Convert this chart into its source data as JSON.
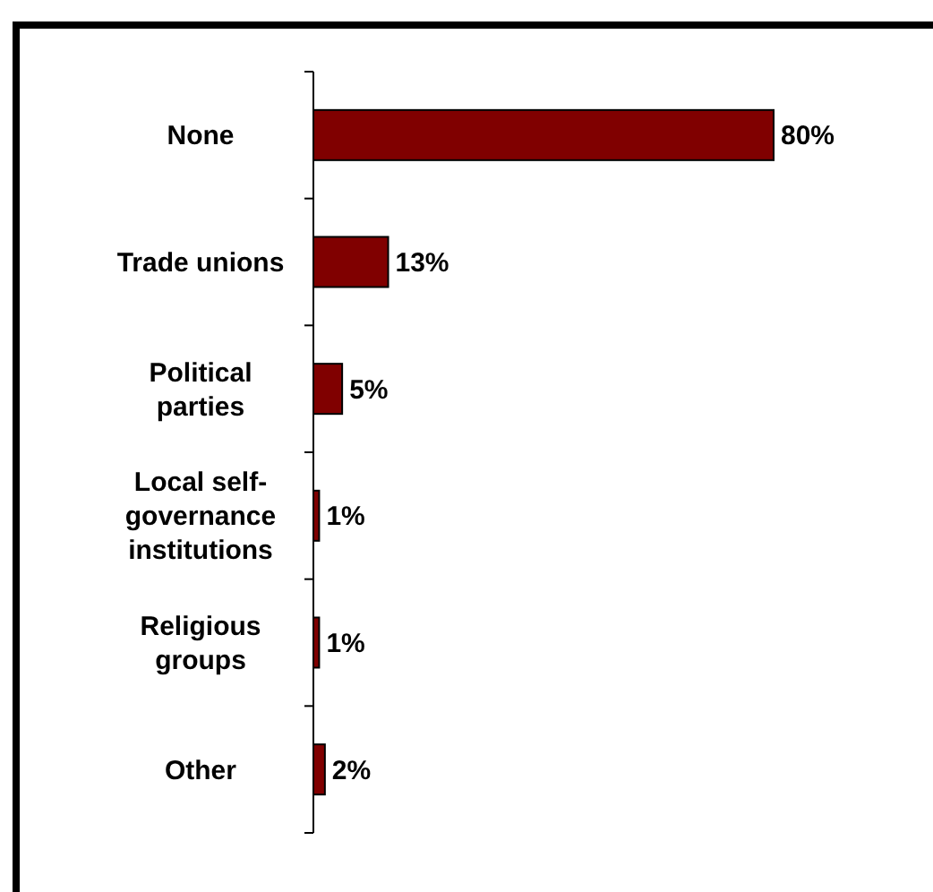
{
  "chart_data": {
    "type": "bar",
    "orientation": "horizontal",
    "categories": [
      "None",
      "Trade unions",
      "Political parties",
      "Local self-governance institutions",
      "Religious groups",
      "Other"
    ],
    "values": [
      80,
      13,
      5,
      1,
      1,
      2
    ],
    "color": "#800000",
    "data_labels": true,
    "value_labels": [
      "80%",
      "13%",
      "5%",
      "1%",
      "1%",
      "2%"
    ]
  }
}
